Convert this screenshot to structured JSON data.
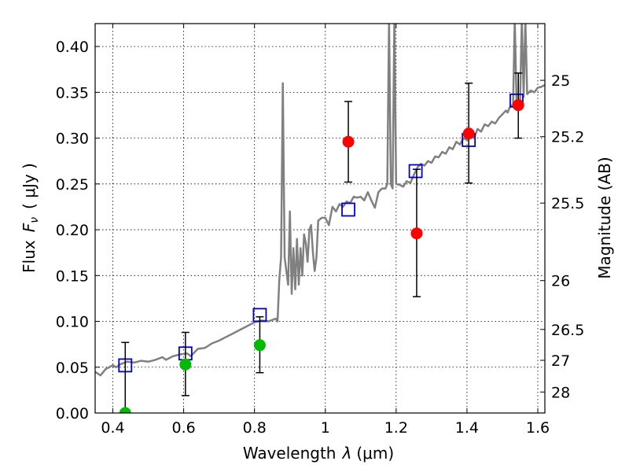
{
  "chart_data": {
    "type": "scatter",
    "title": "",
    "xlabel": "Wavelength",
    "xlabel_symbol": "λ",
    "xlabel_unit": "(μm)",
    "ylabel": "Flux",
    "ylabel_symbol": "F",
    "ylabel_symbol_sub": "ν",
    "ylabel_unit": "( μJy )",
    "y2label": "Magnitude (AB)",
    "xlim": [
      0.35,
      1.62
    ],
    "ylim": [
      0.0,
      0.425
    ],
    "grid": true,
    "x_ticks": [
      {
        "value": 0.4,
        "label": "0.4"
      },
      {
        "value": 0.6,
        "label": "0.6"
      },
      {
        "value": 0.8,
        "label": "0.8"
      },
      {
        "value": 1.0,
        "label": "1"
      },
      {
        "value": 1.2,
        "label": "1.2"
      },
      {
        "value": 1.4,
        "label": "1.4"
      },
      {
        "value": 1.6,
        "label": "1.6"
      }
    ],
    "y_ticks": [
      {
        "value": 0.0,
        "label": "0.00"
      },
      {
        "value": 0.05,
        "label": "0.05"
      },
      {
        "value": 0.1,
        "label": "0.10"
      },
      {
        "value": 0.15,
        "label": "0.15"
      },
      {
        "value": 0.2,
        "label": "0.20"
      },
      {
        "value": 0.25,
        "label": "0.25"
      },
      {
        "value": 0.3,
        "label": "0.30"
      },
      {
        "value": 0.35,
        "label": "0.35"
      },
      {
        "value": 0.4,
        "label": "0.40"
      }
    ],
    "y2_ticks": [
      {
        "flux": 0.3631,
        "label": "25"
      },
      {
        "flux": 0.3016,
        "label": "25.2"
      },
      {
        "flux": 0.2291,
        "label": "25.5"
      },
      {
        "flux": 0.1445,
        "label": "26"
      },
      {
        "flux": 0.0912,
        "label": "26.5"
      },
      {
        "flux": 0.0575,
        "label": "27"
      },
      {
        "flux": 0.0229,
        "label": "28"
      }
    ],
    "series": [
      {
        "kind": "line",
        "color": "#808080",
        "points": [
          [
            0.35,
            0.045
          ],
          [
            0.365,
            0.041
          ],
          [
            0.38,
            0.048
          ],
          [
            0.39,
            0.05
          ],
          [
            0.4,
            0.052
          ],
          [
            0.41,
            0.05
          ],
          [
            0.42,
            0.053
          ],
          [
            0.44,
            0.056
          ],
          [
            0.46,
            0.055
          ],
          [
            0.48,
            0.057
          ],
          [
            0.5,
            0.056
          ],
          [
            0.52,
            0.058
          ],
          [
            0.54,
            0.061
          ],
          [
            0.55,
            0.058
          ],
          [
            0.57,
            0.062
          ],
          [
            0.59,
            0.064
          ],
          [
            0.61,
            0.065
          ],
          [
            0.62,
            0.062
          ],
          [
            0.64,
            0.07
          ],
          [
            0.66,
            0.071
          ],
          [
            0.68,
            0.076
          ],
          [
            0.7,
            0.079
          ],
          [
            0.72,
            0.083
          ],
          [
            0.74,
            0.087
          ],
          [
            0.76,
            0.091
          ],
          [
            0.78,
            0.095
          ],
          [
            0.8,
            0.099
          ],
          [
            0.82,
            0.101
          ],
          [
            0.84,
            0.1
          ],
          [
            0.86,
            0.103
          ],
          [
            0.865,
            0.1
          ],
          [
            0.87,
            0.145
          ],
          [
            0.875,
            0.17
          ],
          [
            0.88,
            0.36
          ],
          [
            0.885,
            0.17
          ],
          [
            0.89,
            0.155
          ],
          [
            0.895,
            0.14
          ],
          [
            0.9,
            0.22
          ],
          [
            0.905,
            0.13
          ],
          [
            0.91,
            0.18
          ],
          [
            0.915,
            0.135
          ],
          [
            0.92,
            0.19
          ],
          [
            0.925,
            0.14
          ],
          [
            0.93,
            0.18
          ],
          [
            0.935,
            0.15
          ],
          [
            0.94,
            0.195
          ],
          [
            0.945,
            0.185
          ],
          [
            0.95,
            0.165
          ],
          [
            0.955,
            0.2
          ],
          [
            0.96,
            0.205
          ],
          [
            0.965,
            0.175
          ],
          [
            0.97,
            0.155
          ],
          [
            0.975,
            0.17
          ],
          [
            0.98,
            0.21
          ],
          [
            0.99,
            0.213
          ],
          [
            1.0,
            0.213
          ],
          [
            1.01,
            0.205
          ],
          [
            1.02,
            0.225
          ],
          [
            1.03,
            0.22
          ],
          [
            1.04,
            0.228
          ],
          [
            1.05,
            0.225
          ],
          [
            1.06,
            0.231
          ],
          [
            1.07,
            0.229
          ],
          [
            1.08,
            0.236
          ],
          [
            1.09,
            0.235
          ],
          [
            1.1,
            0.236
          ],
          [
            1.11,
            0.232
          ],
          [
            1.12,
            0.241
          ],
          [
            1.13,
            0.232
          ],
          [
            1.14,
            0.224
          ],
          [
            1.15,
            0.241
          ],
          [
            1.16,
            0.245
          ],
          [
            1.17,
            0.245
          ],
          [
            1.175,
            0.25
          ],
          [
            1.18,
            0.43
          ],
          [
            1.185,
            0.25
          ],
          [
            1.19,
            0.245
          ],
          [
            1.195,
            0.43
          ],
          [
            1.2,
            0.25
          ],
          [
            1.21,
            0.249
          ],
          [
            1.22,
            0.247
          ],
          [
            1.23,
            0.253
          ],
          [
            1.24,
            0.251
          ],
          [
            1.25,
            0.26
          ],
          [
            1.26,
            0.268
          ],
          [
            1.27,
            0.272
          ],
          [
            1.28,
            0.27
          ],
          [
            1.29,
            0.275
          ],
          [
            1.3,
            0.273
          ],
          [
            1.31,
            0.28
          ],
          [
            1.32,
            0.279
          ],
          [
            1.33,
            0.285
          ],
          [
            1.34,
            0.283
          ],
          [
            1.35,
            0.29
          ],
          [
            1.36,
            0.288
          ],
          [
            1.37,
            0.296
          ],
          [
            1.38,
            0.293
          ],
          [
            1.39,
            0.3
          ],
          [
            1.4,
            0.298
          ],
          [
            1.41,
            0.304
          ],
          [
            1.42,
            0.3
          ],
          [
            1.43,
            0.31
          ],
          [
            1.44,
            0.307
          ],
          [
            1.45,
            0.315
          ],
          [
            1.46,
            0.313
          ],
          [
            1.47,
            0.318
          ],
          [
            1.48,
            0.316
          ],
          [
            1.49,
            0.322
          ],
          [
            1.5,
            0.326
          ],
          [
            1.51,
            0.33
          ],
          [
            1.515,
            0.328
          ],
          [
            1.52,
            0.333
          ],
          [
            1.525,
            0.336
          ],
          [
            1.53,
            0.334
          ],
          [
            1.535,
            0.43
          ],
          [
            1.54,
            0.338
          ],
          [
            1.545,
            0.335
          ],
          [
            1.55,
            0.342
          ],
          [
            1.555,
            0.43
          ],
          [
            1.56,
            0.345
          ],
          [
            1.565,
            0.43
          ],
          [
            1.57,
            0.348
          ],
          [
            1.58,
            0.352
          ],
          [
            1.59,
            0.35
          ],
          [
            1.6,
            0.355
          ],
          [
            1.61,
            0.356
          ],
          [
            1.62,
            0.358
          ]
        ]
      },
      {
        "kind": "square-marker",
        "color": "#0000cc",
        "points": [
          [
            0.435,
            0.052
          ],
          [
            0.605,
            0.065
          ],
          [
            0.815,
            0.107
          ],
          [
            1.065,
            0.222
          ],
          [
            1.255,
            0.264
          ],
          [
            1.405,
            0.298
          ],
          [
            1.54,
            0.341
          ]
        ]
      },
      {
        "kind": "circle-errorbar",
        "color": "#00bb00",
        "points": [
          {
            "x": 0.435,
            "y": 0.0,
            "ylo": 0.0,
            "yhi": 0.077
          },
          {
            "x": 0.605,
            "y": 0.053,
            "ylo": 0.019,
            "yhi": 0.088
          },
          {
            "x": 0.815,
            "y": 0.074,
            "ylo": 0.044,
            "yhi": 0.105
          }
        ]
      },
      {
        "kind": "circle-errorbar",
        "color": "#ff0000",
        "points": [
          {
            "x": 1.065,
            "y": 0.296,
            "ylo": 0.252,
            "yhi": 0.34
          },
          {
            "x": 1.258,
            "y": 0.196,
            "ylo": 0.127,
            "yhi": 0.266
          },
          {
            "x": 1.405,
            "y": 0.305,
            "ylo": 0.251,
            "yhi": 0.36
          },
          {
            "x": 1.545,
            "y": 0.336,
            "ylo": 0.3,
            "yhi": 0.371
          }
        ]
      }
    ]
  }
}
